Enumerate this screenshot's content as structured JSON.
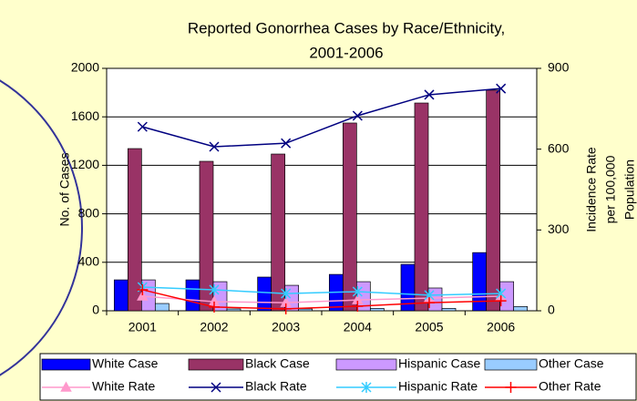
{
  "chart_data": {
    "type": "bar",
    "title": [
      "Reported Gonorrhea Cases by Race/Ethnicity,",
      "2001-2006"
    ],
    "y_label": "No. of Cases",
    "y2_label": [
      "Incidence Rate",
      "per 100,000",
      "Population"
    ],
    "categories": [
      "2001",
      "2002",
      "2003",
      "2004",
      "2005",
      "2006"
    ],
    "ylim": [
      0,
      2000
    ],
    "yticks": [
      0,
      400,
      800,
      1200,
      1600,
      2000
    ],
    "y2lim": [
      0,
      900
    ],
    "y2ticks": [
      0,
      300,
      600,
      900
    ],
    "grid": true,
    "legend": "bottom",
    "series": [
      {
        "name": "White Case",
        "type": "bar",
        "color": "#0000ff",
        "values": [
          255,
          255,
          278,
          300,
          383,
          480
        ]
      },
      {
        "name": "Black Case",
        "type": "bar",
        "color": "#993366",
        "values": [
          1338,
          1233,
          1293,
          1549,
          1714,
          1820
        ]
      },
      {
        "name": "Hispanic Case",
        "type": "bar",
        "color": "#cc99ff",
        "values": [
          255,
          240,
          210,
          240,
          188,
          240
        ]
      },
      {
        "name": "Other Case",
        "type": "bar",
        "color": "#99ccff",
        "values": [
          60,
          15,
          15,
          20,
          20,
          35
        ]
      },
      {
        "name": "White Rate",
        "type": "line",
        "axis": "y2",
        "marker": "triangle",
        "color": "#ff99cc",
        "values": [
          54,
          34,
          30,
          40,
          47,
          54
        ]
      },
      {
        "name": "Black Rate",
        "type": "line",
        "axis": "y2",
        "marker": "x",
        "color": "#000080",
        "values": [
          683,
          609,
          622,
          724,
          802,
          825
        ]
      },
      {
        "name": "Hispanic Rate",
        "type": "line",
        "axis": "y2",
        "marker": "star",
        "color": "#33ccff",
        "values": [
          88,
          78,
          64,
          71,
          58,
          64
        ]
      },
      {
        "name": "Other Rate",
        "type": "line",
        "axis": "y2",
        "marker": "plus",
        "color": "#ff0000",
        "values": [
          78,
          14,
          7,
          17,
          30,
          37
        ]
      }
    ]
  }
}
